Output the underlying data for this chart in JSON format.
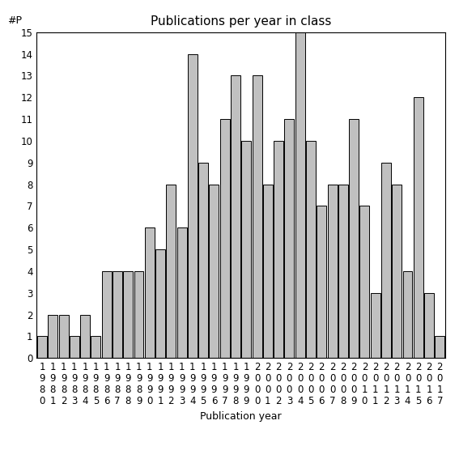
{
  "title": "Publications per year in class",
  "xlabel": "Publication year",
  "ylabel": "#P",
  "years": [
    "1980",
    "1981",
    "1982",
    "1983",
    "1984",
    "1985",
    "1986",
    "1987",
    "1988",
    "1989",
    "1990",
    "1991",
    "1992",
    "1993",
    "1994",
    "1995",
    "1996",
    "1997",
    "1998",
    "1999",
    "2000",
    "2001",
    "2002",
    "2003",
    "2004",
    "2005",
    "2006",
    "2007",
    "2008",
    "2009",
    "2010",
    "2011",
    "2012",
    "2013",
    "2014",
    "2015",
    "2016",
    "2017"
  ],
  "values": [
    1,
    2,
    2,
    1,
    2,
    1,
    4,
    4,
    4,
    4,
    6,
    5,
    8,
    6,
    14,
    9,
    8,
    11,
    13,
    10,
    13,
    8,
    10,
    11,
    15,
    10,
    7,
    8,
    8,
    11,
    7,
    3,
    9,
    8,
    4,
    12,
    3,
    1
  ],
  "bar_color": "#c0c0c0",
  "bar_edge_color": "#000000",
  "ylim_min": 0,
  "ylim_max": 15,
  "yticks": [
    0,
    1,
    2,
    3,
    4,
    5,
    6,
    7,
    8,
    9,
    10,
    11,
    12,
    13,
    14,
    15
  ],
  "background_color": "#ffffff",
  "title_fontsize": 11,
  "axis_label_fontsize": 9,
  "tick_fontsize": 8.5,
  "bar_linewidth": 0.7
}
